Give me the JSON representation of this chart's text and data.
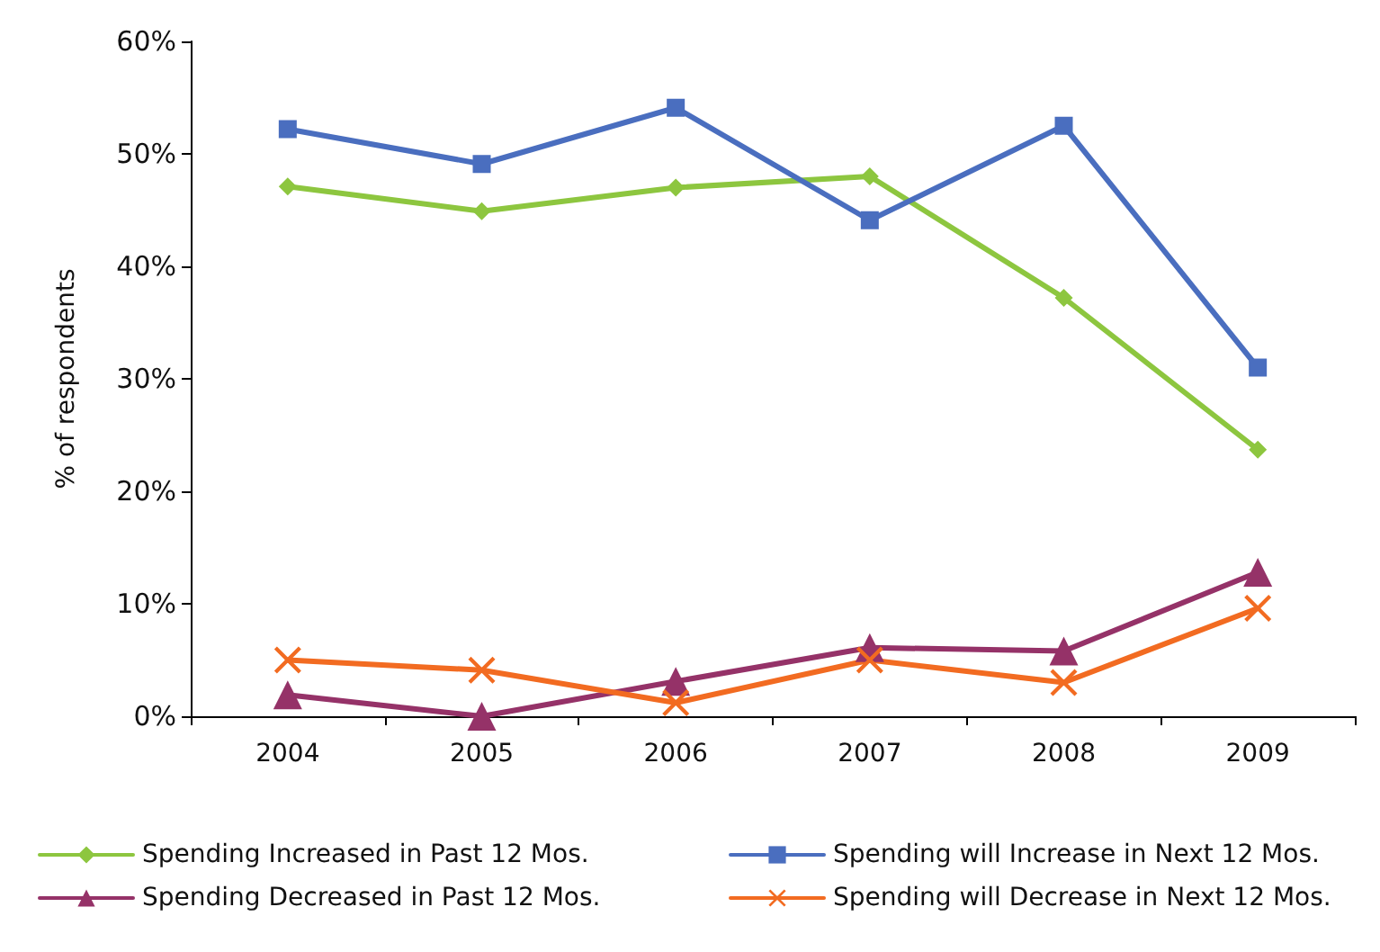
{
  "chart_data": {
    "type": "line",
    "ylabel": "% of respondents",
    "categories": [
      "2004",
      "2005",
      "2006",
      "2007",
      "2008",
      "2009"
    ],
    "series": [
      {
        "name": "Spending Increased in Past 12 Mos.",
        "color": "#8dc63f",
        "marker": "diamond",
        "values": [
          47.1,
          44.9,
          47,
          48,
          37.2,
          23.7
        ]
      },
      {
        "name": "Spending will Increase in Next 12 Mos.",
        "color": "#4a6ebf",
        "marker": "square",
        "values": [
          52.2,
          49.1,
          54.1,
          44.1,
          52.5,
          31
        ]
      },
      {
        "name": "Spending Decreased in Past 12 Mos.",
        "color": "#953268",
        "marker": "triangle",
        "values": [
          1.9,
          0,
          3.1,
          6.1,
          5.8,
          12.8
        ]
      },
      {
        "name": "Spending will Decrease in Next 12 Mos.",
        "color": "#f26b21",
        "marker": "cross",
        "values": [
          5,
          4.1,
          1.2,
          5,
          3,
          9.6
        ]
      }
    ],
    "ylim": [
      0,
      60
    ],
    "yticks": [
      {
        "value": 0,
        "label": "0%"
      },
      {
        "value": 10,
        "label": "10%"
      },
      {
        "value": 20,
        "label": "20%"
      },
      {
        "value": 30,
        "label": "30%"
      },
      {
        "value": 40,
        "label": "40%"
      },
      {
        "value": 50,
        "label": "50%"
      },
      {
        "value": 60,
        "label": "60%"
      }
    ],
    "grid": false,
    "legend": "bottom",
    "line_style": "solid"
  }
}
